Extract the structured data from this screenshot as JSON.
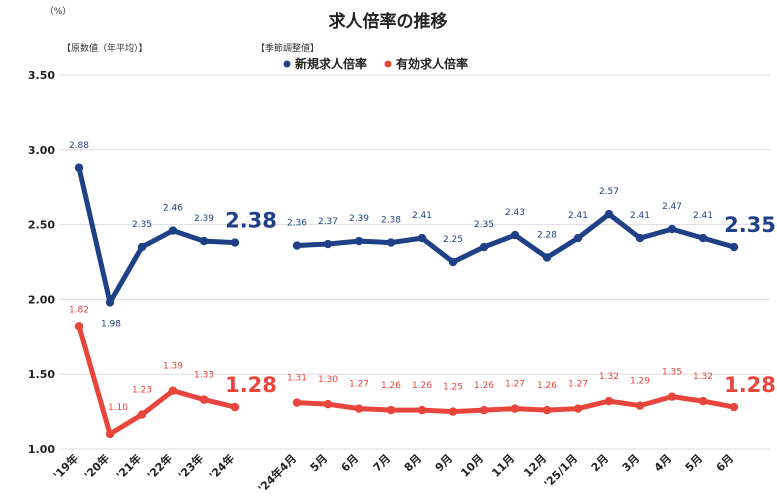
{
  "chart_data": {
    "type": "line",
    "title": "求人倍率の推移",
    "unit_label": "（%）",
    "left_section_label": "【原数値（年平均）】",
    "right_section_label": "【季節調整値】",
    "ylim": [
      1.0,
      3.5
    ],
    "y_ticks": [
      "3.50",
      "3.00",
      "2.50",
      "2.00",
      "1.50",
      "1.00"
    ],
    "grid": true,
    "legend_position": "top-center",
    "categories": [
      "'19年",
      "'20年",
      "'21年",
      "'22年",
      "'23年",
      "'24年",
      "'24年4月",
      "5月",
      "6月",
      "7月",
      "8月",
      "9月",
      "10月",
      "11月",
      "12月",
      "'25/1月",
      "2月",
      "3月",
      "4月",
      "5月",
      "6月"
    ],
    "series": [
      {
        "name": "新規求人倍率",
        "color": "#1f3f86",
        "values": [
          2.88,
          1.98,
          2.35,
          2.46,
          2.39,
          2.38,
          2.36,
          2.37,
          2.39,
          2.38,
          2.41,
          2.25,
          2.35,
          2.43,
          2.28,
          2.41,
          2.57,
          2.41,
          2.47,
          2.41,
          2.35
        ],
        "labels": [
          "2.88",
          "1.98",
          "2.35",
          "2.46",
          "2.39",
          "2.38",
          "2.36",
          "2.37",
          "2.39",
          "2.38",
          "2.41",
          "2.25",
          "2.35",
          "2.43",
          "2.28",
          "2.41",
          "2.57",
          "2.41",
          "2.47",
          "2.41",
          "2.35"
        ]
      },
      {
        "name": "有効求人倍率",
        "color": "#e8453c",
        "values": [
          1.82,
          1.1,
          1.23,
          1.39,
          1.33,
          1.28,
          1.31,
          1.3,
          1.27,
          1.26,
          1.26,
          1.25,
          1.26,
          1.27,
          1.26,
          1.27,
          1.32,
          1.29,
          1.35,
          1.32,
          1.28
        ],
        "labels": [
          "1.82",
          "1.10",
          "1.23",
          "1.39",
          "1.33",
          "1.28",
          "1.31",
          "1.30",
          "1.27",
          "1.26",
          "1.26",
          "1.25",
          "1.26",
          "1.27",
          "1.26",
          "1.27",
          "1.32",
          "1.29",
          "1.35",
          "1.32",
          "1.28"
        ]
      }
    ]
  }
}
